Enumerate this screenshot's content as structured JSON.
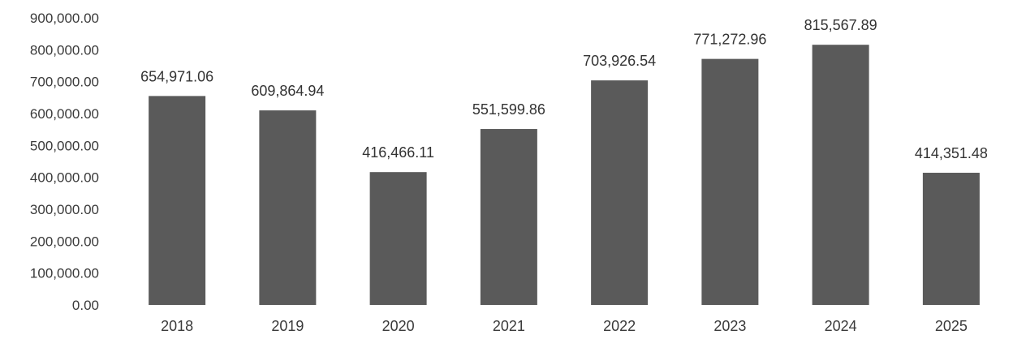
{
  "chart_data": {
    "type": "bar",
    "categories": [
      "2018",
      "2019",
      "2020",
      "2021",
      "2022",
      "2023",
      "2024",
      "2025"
    ],
    "values": [
      654971.06,
      609864.94,
      416466.11,
      551599.86,
      703926.54,
      771272.96,
      815567.89,
      414351.48
    ],
    "data_labels": [
      "654,971.06",
      "609,864.94",
      "416,466.11",
      "551,599.86",
      "703,926.54",
      "771,272.96",
      "815,567.89",
      "414,351.48"
    ],
    "y_ticks": [
      "0.00",
      "100,000.00",
      "200,000.00",
      "300,000.00",
      "400,000.00",
      "500,000.00",
      "600,000.00",
      "700,000.00",
      "800,000.00",
      "900,000.00"
    ],
    "ylim": [
      0,
      900000
    ],
    "grid": false,
    "legend": "none",
    "bar_color": "#5a5a5a",
    "title": "",
    "xlabel": "",
    "ylabel": ""
  }
}
